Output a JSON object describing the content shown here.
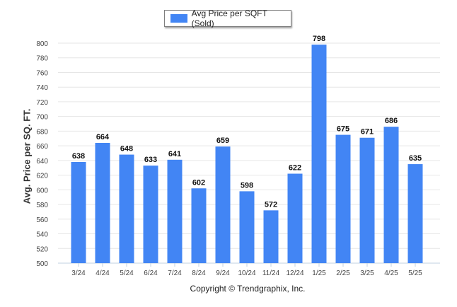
{
  "chart_data": {
    "type": "bar",
    "title": "",
    "xlabel": "",
    "ylabel": "Avg. Price per SQ. FT.",
    "ylim": [
      500,
      800
    ],
    "yticks": [
      500,
      520,
      540,
      560,
      580,
      600,
      620,
      640,
      660,
      680,
      700,
      720,
      740,
      760,
      780,
      800
    ],
    "grid": true,
    "legend_position": "top-center",
    "bar_color": "#4285f4",
    "categories": [
      "3/24",
      "4/24",
      "5/24",
      "6/24",
      "7/24",
      "8/24",
      "9/24",
      "10/24",
      "11/24",
      "12/24",
      "1/25",
      "2/25",
      "3/25",
      "4/25",
      "5/25"
    ],
    "series": [
      {
        "name": "Avg Price per SQFT (Sold)",
        "values": [
          638,
          664,
          648,
          633,
          641,
          602,
          659,
          598,
          572,
          622,
          798,
          675,
          671,
          686,
          635
        ]
      }
    ],
    "data_labels": true
  },
  "legend": {
    "label": "Avg Price per SQFT (Sold)",
    "color": "#4285f4"
  },
  "footer": {
    "copyright": "Copyright © Trendgraphix, Inc."
  }
}
